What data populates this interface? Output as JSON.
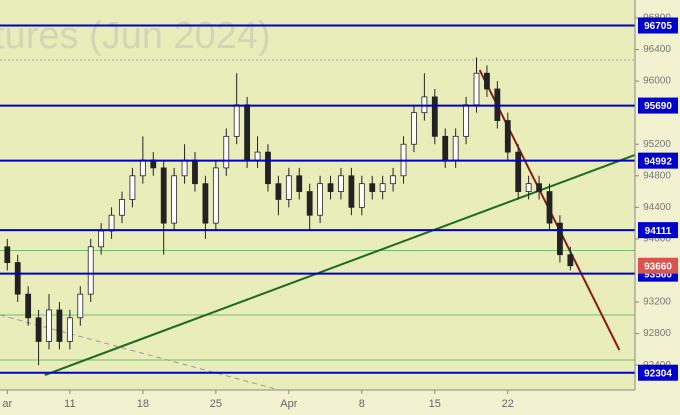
{
  "chart_data": {
    "type": "candlestick",
    "watermark": "tures (Jun 2024)",
    "xlim": [
      0.3,
      61.2
    ],
    "ylim": [
      92085,
      97028
    ],
    "xticks": [
      {
        "value": 1,
        "label": "ar"
      },
      {
        "value": 7,
        "label": "11"
      },
      {
        "value": 14,
        "label": "18"
      },
      {
        "value": 21,
        "label": "25"
      },
      {
        "value": 28,
        "label": "Apr"
      },
      {
        "value": 35,
        "label": "8"
      },
      {
        "value": 42,
        "label": "15"
      },
      {
        "value": 49,
        "label": "22"
      }
    ],
    "yticks": [
      96800,
      96400,
      96000,
      95200,
      94800,
      94400,
      94000,
      93200,
      92800,
      92400
    ],
    "x": [
      1,
      2,
      3,
      4,
      5,
      6,
      7,
      8,
      9,
      10,
      11,
      12,
      13,
      14,
      15,
      16,
      17,
      18,
      19,
      20,
      21,
      22,
      23,
      24,
      25,
      26,
      27,
      28,
      29,
      30,
      31,
      32,
      33,
      34,
      35,
      36,
      37,
      38,
      39,
      40,
      41,
      42,
      43,
      44,
      45,
      46,
      47,
      48,
      49,
      50,
      51,
      52,
      53,
      54,
      55
    ],
    "open": [
      93900,
      93700,
      93300,
      93000,
      92700,
      93100,
      92700,
      93000,
      93300,
      93900,
      94100,
      94300,
      94500,
      94800,
      95000,
      94900,
      94200,
      94800,
      95000,
      94700,
      94200,
      94900,
      95300,
      95700,
      95000,
      95100,
      94700,
      94500,
      94800,
      94600,
      94300,
      94700,
      94600,
      94800,
      94400,
      94700,
      94600,
      94700,
      94800,
      95200,
      95600,
      95800,
      95300,
      95000,
      95300,
      95700,
      96100,
      95900,
      95500,
      95100,
      94600,
      94700,
      94600,
      94200,
      93800
    ],
    "high": [
      94000,
      93800,
      93400,
      93100,
      93300,
      93200,
      93100,
      93400,
      94000,
      94200,
      94400,
      94600,
      94900,
      95300,
      95100,
      95000,
      94900,
      95200,
      95100,
      94800,
      95000,
      95400,
      96100,
      95800,
      95300,
      95200,
      94800,
      94900,
      94900,
      94700,
      94800,
      94800,
      94900,
      94900,
      94800,
      94800,
      94800,
      94900,
      95300,
      95700,
      96100,
      95900,
      95400,
      95400,
      95800,
      96300,
      96200,
      96000,
      95600,
      95200,
      94800,
      94800,
      94700,
      94300,
      93900
    ],
    "low": [
      93600,
      93200,
      92900,
      92400,
      92600,
      92600,
      92600,
      92900,
      93200,
      93800,
      94000,
      94200,
      94400,
      94700,
      94800,
      93800,
      94100,
      94700,
      94600,
      94000,
      94100,
      94800,
      95200,
      94900,
      94900,
      94600,
      94300,
      94400,
      94500,
      94100,
      94200,
      94500,
      94500,
      94300,
      94300,
      94500,
      94500,
      94600,
      94700,
      95100,
      95500,
      95200,
      94900,
      94900,
      95200,
      95600,
      95800,
      95400,
      95000,
      94500,
      94500,
      94500,
      94100,
      93700,
      93600
    ],
    "close": [
      93700,
      93300,
      93000,
      92700,
      93100,
      92700,
      93000,
      93300,
      93900,
      94100,
      94300,
      94500,
      94800,
      95000,
      94900,
      94200,
      94800,
      95000,
      94700,
      94200,
      94900,
      95300,
      95700,
      95000,
      95100,
      94700,
      94500,
      94800,
      94600,
      94300,
      94700,
      94600,
      94800,
      94400,
      94700,
      94600,
      94700,
      94800,
      95200,
      95600,
      95800,
      95300,
      95000,
      95300,
      95700,
      96100,
      95900,
      95500,
      95100,
      94600,
      94700,
      94600,
      94200,
      93800,
      93660
    ],
    "last_price_color": "#d9534f",
    "levels": [
      {
        "value": 96705,
        "color": "#0000cc"
      },
      {
        "value": 95690,
        "color": "#0000cc"
      },
      {
        "value": 94992,
        "color": "#0000cc"
      },
      {
        "value": 94111,
        "color": "#0000cc"
      },
      {
        "value": 93560,
        "color": "#0000cc"
      },
      {
        "value": 92304,
        "color": "#0000cc"
      }
    ],
    "thin_levels": [
      {
        "value": 96268,
        "color": "#999999",
        "dash": true
      },
      {
        "value": 93855,
        "color": "#4caf50",
        "dash": false
      },
      {
        "value": 93036,
        "color": "#4caf50",
        "dash": false
      },
      {
        "value": 92465,
        "color": "#4caf50",
        "dash": false
      }
    ],
    "trendlines": [
      {
        "color": "#1e6b1e",
        "dash": false,
        "x": [
          4.6,
          61.2
        ],
        "y": [
          92275,
          95064
        ]
      },
      {
        "color": "#8b1a1a",
        "dash": false,
        "x": [
          46.3,
          59.7
        ],
        "y": [
          96141,
          92592
        ]
      },
      {
        "color": "#999999",
        "dash": true,
        "x": [
          0.3,
          27.1
        ],
        "y": [
          93036,
          92085
        ]
      }
    ]
  }
}
